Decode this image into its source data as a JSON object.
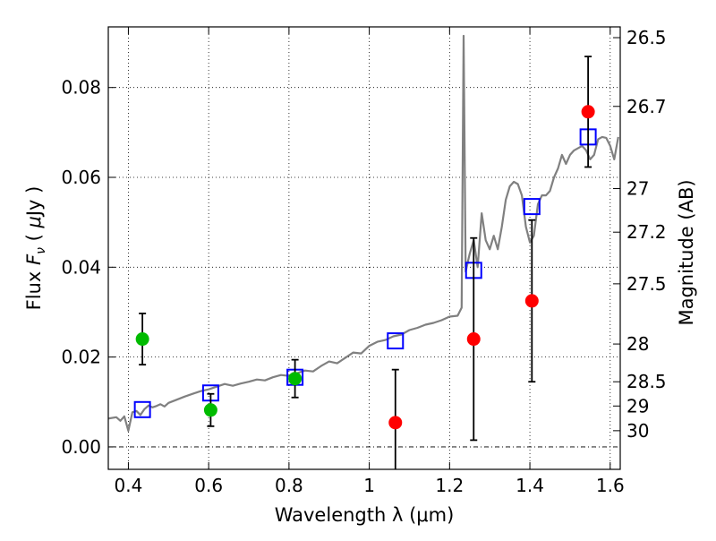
{
  "chart_data": {
    "type": "scatter",
    "title": "",
    "xlabel": "Wavelength  λ (μm)",
    "ylabel_parts": [
      "Flux ",
      "F",
      "ν",
      " ( ",
      "μ",
      "Jy )"
    ],
    "y2label": "Magnitude (AB)",
    "xlim": [
      0.35,
      1.625
    ],
    "ylim": [
      -0.005,
      0.0935
    ],
    "xticks": [
      0.4,
      0.6,
      0.8,
      1.0,
      1.2,
      1.4,
      1.6
    ],
    "xtick_labels": [
      "0.4",
      "0.6",
      "0.8",
      "1",
      "1.2",
      "1.4",
      "1.6"
    ],
    "yticks": [
      0.0,
      0.02,
      0.04,
      0.06,
      0.08
    ],
    "ytick_labels": [
      "0.00",
      "0.02",
      "0.04",
      "0.06",
      "0.08"
    ],
    "y2ticks": [
      {
        "label": "26.5",
        "flux": 0.0911
      },
      {
        "label": "26.7",
        "flux": 0.0758
      },
      {
        "label": "27",
        "flux": 0.0575
      },
      {
        "label": "27.2",
        "flux": 0.0478
      },
      {
        "label": "27.5",
        "flux": 0.0363
      },
      {
        "label": "28",
        "flux": 0.0229
      },
      {
        "label": "28.5",
        "flux": 0.0145
      },
      {
        "label": "29",
        "flux": 0.0091
      },
      {
        "label": "30",
        "flux": 0.0036
      }
    ],
    "grid": true,
    "legend": "none",
    "series": [
      {
        "kind": "line",
        "color": "#808080",
        "x": [
          0.35,
          0.37,
          0.38,
          0.39,
          0.4,
          0.41,
          0.42,
          0.43,
          0.44,
          0.45,
          0.46,
          0.47,
          0.48,
          0.49,
          0.5,
          0.52,
          0.54,
          0.56,
          0.58,
          0.6,
          0.62,
          0.64,
          0.66,
          0.68,
          0.7,
          0.72,
          0.74,
          0.76,
          0.78,
          0.8,
          0.82,
          0.84,
          0.86,
          0.88,
          0.9,
          0.92,
          0.94,
          0.96,
          0.98,
          1.0,
          1.02,
          1.04,
          1.06,
          1.08,
          1.1,
          1.12,
          1.14,
          1.16,
          1.18,
          1.2,
          1.22,
          1.23,
          1.235,
          1.24,
          1.25,
          1.26,
          1.27,
          1.28,
          1.29,
          1.3,
          1.31,
          1.32,
          1.33,
          1.34,
          1.35,
          1.36,
          1.37,
          1.38,
          1.39,
          1.4,
          1.41,
          1.42,
          1.43,
          1.44,
          1.45,
          1.46,
          1.47,
          1.48,
          1.49,
          1.5,
          1.51,
          1.52,
          1.53,
          1.54,
          1.55,
          1.56,
          1.57,
          1.58,
          1.59,
          1.6,
          1.61,
          1.62
        ],
        "y": [
          0.0063,
          0.0066,
          0.0058,
          0.0068,
          0.0036,
          0.0077,
          0.008,
          0.0071,
          0.0084,
          0.0092,
          0.0088,
          0.0091,
          0.0095,
          0.009,
          0.0098,
          0.0105,
          0.0112,
          0.0118,
          0.0124,
          0.0128,
          0.0134,
          0.014,
          0.0136,
          0.0141,
          0.0145,
          0.015,
          0.0148,
          0.0155,
          0.016,
          0.0158,
          0.0164,
          0.017,
          0.0168,
          0.018,
          0.019,
          0.0186,
          0.0198,
          0.021,
          0.0208,
          0.0225,
          0.0234,
          0.0238,
          0.0246,
          0.025,
          0.026,
          0.0265,
          0.0272,
          0.0276,
          0.0282,
          0.029,
          0.0292,
          0.031,
          0.0915,
          0.039,
          0.043,
          0.046,
          0.04,
          0.052,
          0.046,
          0.044,
          0.047,
          0.044,
          0.049,
          0.055,
          0.058,
          0.059,
          0.0585,
          0.056,
          0.049,
          0.0455,
          0.047,
          0.054,
          0.056,
          0.056,
          0.057,
          0.06,
          0.062,
          0.065,
          0.063,
          0.065,
          0.066,
          0.0665,
          0.067,
          0.066,
          0.064,
          0.065,
          0.0685,
          0.069,
          0.0688,
          0.067,
          0.064,
          0.069
        ]
      },
      {
        "kind": "points",
        "marker": "square",
        "color": "#0000ff",
        "x": [
          0.435,
          0.605,
          0.815,
          1.065,
          1.26,
          1.405,
          1.545
        ],
        "y": [
          0.0083,
          0.012,
          0.0155,
          0.0236,
          0.0393,
          0.0535,
          0.069
        ]
      },
      {
        "kind": "points",
        "marker": "circle",
        "color": "#00bb00",
        "x": [
          0.435,
          0.605,
          0.815
        ],
        "y": [
          0.024,
          0.0082,
          0.0152
        ],
        "yerr": [
          0.0057,
          0.0036,
          0.0042
        ]
      },
      {
        "kind": "points",
        "marker": "circle",
        "color": "#ff0000",
        "x": [
          1.065,
          1.26,
          1.405,
          1.545
        ],
        "y": [
          0.0054,
          0.024,
          0.0325,
          0.0746
        ],
        "yerr": [
          0.0118,
          0.0225,
          0.018,
          0.0123
        ]
      }
    ]
  }
}
